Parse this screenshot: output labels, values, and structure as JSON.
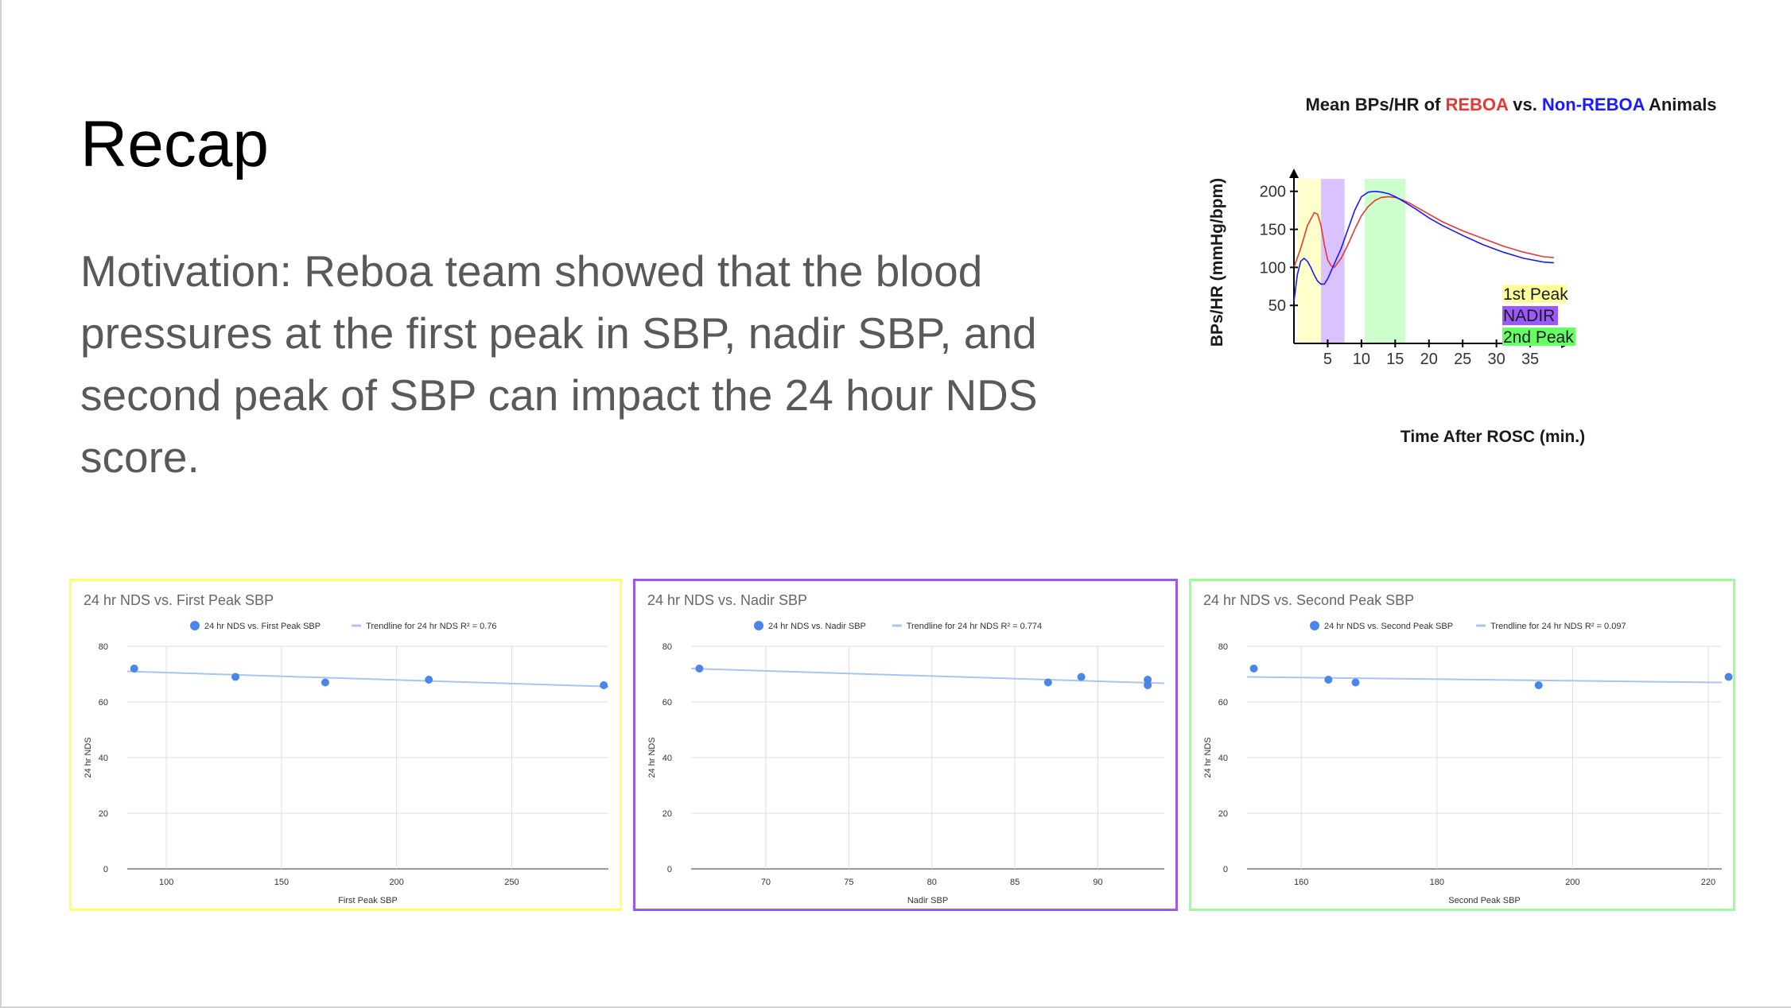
{
  "slide": {
    "title": "Recap",
    "body": "Motivation: Reboa team showed that the blood pressures at the first peak in SBP, nadir SBP, and second peak of SBP can impact the 24 hour NDS score."
  },
  "colors": {
    "body_text": "#595959",
    "reboa_red": "#e53935",
    "non_reboa_blue": "#1a1aff",
    "first_peak_yellow": "#ffffcc",
    "nadir_purple": "#d9c2ff",
    "second_peak_green": "#ccffcc",
    "scatter_point": "#4a86e8",
    "trendline": "#a8c4f0"
  },
  "bp_figure": {
    "title_prefix": "Mean BPs/HR of ",
    "title_reboa": "REBOA",
    "title_vs": " vs. ",
    "title_non_reboa": "Non-REBOA",
    "title_suffix": " Animals",
    "xlabel": "Time After ROSC (min.)",
    "ylabel": "BPs/HR (mmHg/bpm)",
    "x_ticks": [
      "5",
      "10",
      "15",
      "20",
      "25",
      "30",
      "35"
    ],
    "y_ticks": [
      "50",
      "100",
      "150",
      "200"
    ],
    "legend": [
      "1st Peak",
      "NADIR",
      "2nd Peak"
    ]
  },
  "chart_data": [
    {
      "type": "line",
      "title": "Mean BPs/HR of REBOA vs. Non-REBOA Animals",
      "xlabel": "Time After ROSC (min.)",
      "ylabel": "BPs/HR (mmHg/bpm)",
      "xlim": [
        0,
        41
      ],
      "ylim": [
        0,
        230
      ],
      "shaded_regions": [
        {
          "label": "1st Peak",
          "x": [
            0.5,
            4.0
          ],
          "color": "#ffffcc"
        },
        {
          "label": "NADIR",
          "x": [
            4.0,
            7.5
          ],
          "color": "#d9c2ff"
        },
        {
          "label": "2nd Peak",
          "x": [
            10.5,
            16.5
          ],
          "color": "#ccffcc"
        }
      ],
      "series": [
        {
          "color": "#e53935",
          "x": [
            0,
            1,
            2,
            3,
            3.5,
            4,
            4.5,
            5,
            5.5,
            6,
            7,
            8,
            9,
            10,
            11,
            12,
            13,
            14,
            15,
            16,
            17,
            18,
            20,
            22,
            25,
            28,
            31,
            34,
            37,
            38.5
          ],
          "y": [
            100,
            125,
            155,
            172,
            170,
            155,
            130,
            110,
            102,
            100,
            112,
            130,
            150,
            168,
            180,
            188,
            192,
            193,
            192,
            189,
            185,
            180,
            170,
            160,
            148,
            138,
            128,
            120,
            114,
            113
          ]
        },
        {
          "color": "#1a1aff",
          "x": [
            0,
            0.5,
            1,
            1.5,
            2,
            2.5,
            3,
            3.5,
            4,
            4.5,
            5,
            5.5,
            6,
            7,
            8,
            9,
            10,
            11,
            12,
            13,
            14,
            15,
            16,
            18,
            20,
            22,
            25,
            28,
            31,
            34,
            37,
            38.5
          ],
          "y": [
            55,
            90,
            108,
            112,
            108,
            100,
            90,
            82,
            78,
            78,
            85,
            95,
            105,
            125,
            150,
            175,
            193,
            199,
            200,
            199,
            197,
            193,
            188,
            177,
            165,
            155,
            142,
            130,
            120,
            112,
            107,
            106
          ]
        }
      ]
    },
    {
      "type": "scatter",
      "title": "24 hr NDS vs. First Peak SBP",
      "xlabel": "First Peak SBP",
      "ylabel": "24 hr NDS",
      "xlim": [
        83,
        292
      ],
      "ylim": [
        0,
        80
      ],
      "x_ticks": [
        100,
        150,
        200,
        250
      ],
      "y_ticks": [
        0,
        20,
        40,
        60,
        80
      ],
      "series": [
        {
          "name": "24 hr NDS vs. First Peak SBP",
          "x": [
            86,
            130,
            169,
            214,
            290
          ],
          "y": [
            72,
            69,
            67,
            68,
            66
          ]
        },
        {
          "name": "Trendline for 24 hr NDS R² = 0.76",
          "x": [
            83,
            292
          ],
          "y": [
            71,
            65.5
          ]
        }
      ]
    },
    {
      "type": "scatter",
      "title": "24 hr NDS vs. Nadir SBP",
      "xlabel": "Nadir SBP",
      "ylabel": "24 hr NDS",
      "xlim": [
        65.5,
        94
      ],
      "ylim": [
        0,
        80
      ],
      "x_ticks": [
        70,
        75,
        80,
        85,
        90
      ],
      "y_ticks": [
        0,
        20,
        40,
        60,
        80
      ],
      "series": [
        {
          "name": "24 hr NDS vs. Nadir SBP",
          "x": [
            66,
            87,
            89,
            93,
            93
          ],
          "y": [
            72,
            67,
            69,
            68,
            66
          ]
        },
        {
          "name": "Trendline for 24 hr NDS R² = 0.774",
          "x": [
            65.5,
            94
          ],
          "y": [
            72,
            66.7
          ]
        }
      ]
    },
    {
      "type": "scatter",
      "title": "24 hr NDS vs. Second Peak SBP",
      "xlabel": "Second Peak SBP",
      "ylabel": "24 hr NDS",
      "xlim": [
        152,
        222
      ],
      "ylim": [
        0,
        80
      ],
      "x_ticks": [
        160,
        180,
        200,
        220
      ],
      "y_ticks": [
        0,
        20,
        40,
        60,
        80
      ],
      "series": [
        {
          "name": "24 hr NDS vs. Second Peak SBP",
          "x": [
            153,
            164,
            168,
            195,
            223
          ],
          "y": [
            72,
            68,
            67,
            66,
            69
          ]
        },
        {
          "name": "Trendline for 24 hr NDS R² = 0.097",
          "x": [
            152,
            222
          ],
          "y": [
            69,
            67
          ]
        }
      ]
    }
  ]
}
